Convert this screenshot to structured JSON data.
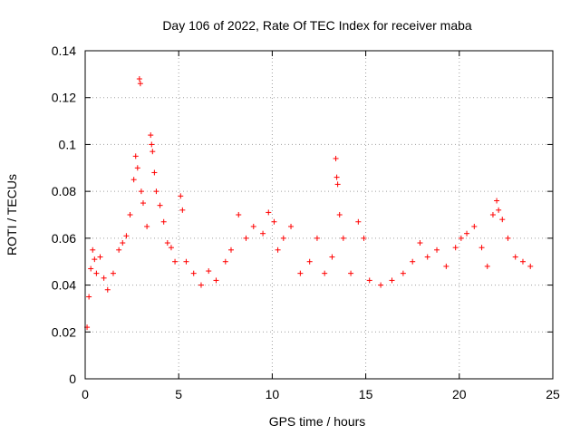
{
  "chart_data": {
    "type": "scatter",
    "title": "Day 106 of 2022, Rate Of TEC Index for receiver maba",
    "xlabel": "GPS time / hours",
    "ylabel": "ROTI / TECUs",
    "xlim": [
      0,
      25
    ],
    "ylim": [
      0,
      0.14
    ],
    "xticks": [
      0,
      5,
      10,
      15,
      20,
      25
    ],
    "yticks": [
      0,
      0.02,
      0.04,
      0.06,
      0.08,
      0.1,
      0.12,
      0.14
    ],
    "xtick_labels": [
      "0",
      "5",
      "10",
      "15",
      "20",
      "25"
    ],
    "ytick_labels": [
      "0",
      "0.02",
      "0.04",
      "0.06",
      "0.08",
      "0.1",
      "0.12",
      "0.14"
    ],
    "grid": true,
    "marker": "+",
    "color": "#ff0000",
    "series": [
      {
        "name": "ROTI",
        "points": [
          [
            0.1,
            0.022
          ],
          [
            0.2,
            0.035
          ],
          [
            0.3,
            0.047
          ],
          [
            0.4,
            0.055
          ],
          [
            0.5,
            0.051
          ],
          [
            0.6,
            0.045
          ],
          [
            0.8,
            0.052
          ],
          [
            1.0,
            0.043
          ],
          [
            1.2,
            0.038
          ],
          [
            1.5,
            0.045
          ],
          [
            1.8,
            0.055
          ],
          [
            2.0,
            0.058
          ],
          [
            2.2,
            0.061
          ],
          [
            2.4,
            0.07
          ],
          [
            2.6,
            0.085
          ],
          [
            2.7,
            0.095
          ],
          [
            2.8,
            0.09
          ],
          [
            2.9,
            0.128
          ],
          [
            2.95,
            0.126
          ],
          [
            3.0,
            0.08
          ],
          [
            3.1,
            0.075
          ],
          [
            3.3,
            0.065
          ],
          [
            3.5,
            0.104
          ],
          [
            3.55,
            0.1
          ],
          [
            3.6,
            0.097
          ],
          [
            3.7,
            0.088
          ],
          [
            3.8,
            0.08
          ],
          [
            4.0,
            0.074
          ],
          [
            4.2,
            0.067
          ],
          [
            4.4,
            0.058
          ],
          [
            4.6,
            0.056
          ],
          [
            4.8,
            0.05
          ],
          [
            5.1,
            0.078
          ],
          [
            5.2,
            0.072
          ],
          [
            5.4,
            0.05
          ],
          [
            5.8,
            0.045
          ],
          [
            6.2,
            0.04
          ],
          [
            6.6,
            0.046
          ],
          [
            7.0,
            0.042
          ],
          [
            7.5,
            0.05
          ],
          [
            7.8,
            0.055
          ],
          [
            8.2,
            0.07
          ],
          [
            8.6,
            0.06
          ],
          [
            9.0,
            0.065
          ],
          [
            9.5,
            0.062
          ],
          [
            9.8,
            0.071
          ],
          [
            10.1,
            0.067
          ],
          [
            10.3,
            0.055
          ],
          [
            10.6,
            0.06
          ],
          [
            11.0,
            0.065
          ],
          [
            11.5,
            0.045
          ],
          [
            12.0,
            0.05
          ],
          [
            12.4,
            0.06
          ],
          [
            12.8,
            0.045
          ],
          [
            13.2,
            0.052
          ],
          [
            13.4,
            0.094
          ],
          [
            13.45,
            0.086
          ],
          [
            13.5,
            0.083
          ],
          [
            13.6,
            0.07
          ],
          [
            13.8,
            0.06
          ],
          [
            14.2,
            0.045
          ],
          [
            14.6,
            0.067
          ],
          [
            14.9,
            0.06
          ],
          [
            15.2,
            0.042
          ],
          [
            15.8,
            0.04
          ],
          [
            16.4,
            0.042
          ],
          [
            17.0,
            0.045
          ],
          [
            17.5,
            0.05
          ],
          [
            17.9,
            0.058
          ],
          [
            18.3,
            0.052
          ],
          [
            18.8,
            0.055
          ],
          [
            19.3,
            0.048
          ],
          [
            19.8,
            0.056
          ],
          [
            20.1,
            0.06
          ],
          [
            20.4,
            0.062
          ],
          [
            20.8,
            0.065
          ],
          [
            21.2,
            0.056
          ],
          [
            21.5,
            0.048
          ],
          [
            21.8,
            0.07
          ],
          [
            22.0,
            0.076
          ],
          [
            22.1,
            0.072
          ],
          [
            22.3,
            0.068
          ],
          [
            22.6,
            0.06
          ],
          [
            23.0,
            0.052
          ],
          [
            23.4,
            0.05
          ],
          [
            23.8,
            0.048
          ]
        ]
      }
    ]
  }
}
